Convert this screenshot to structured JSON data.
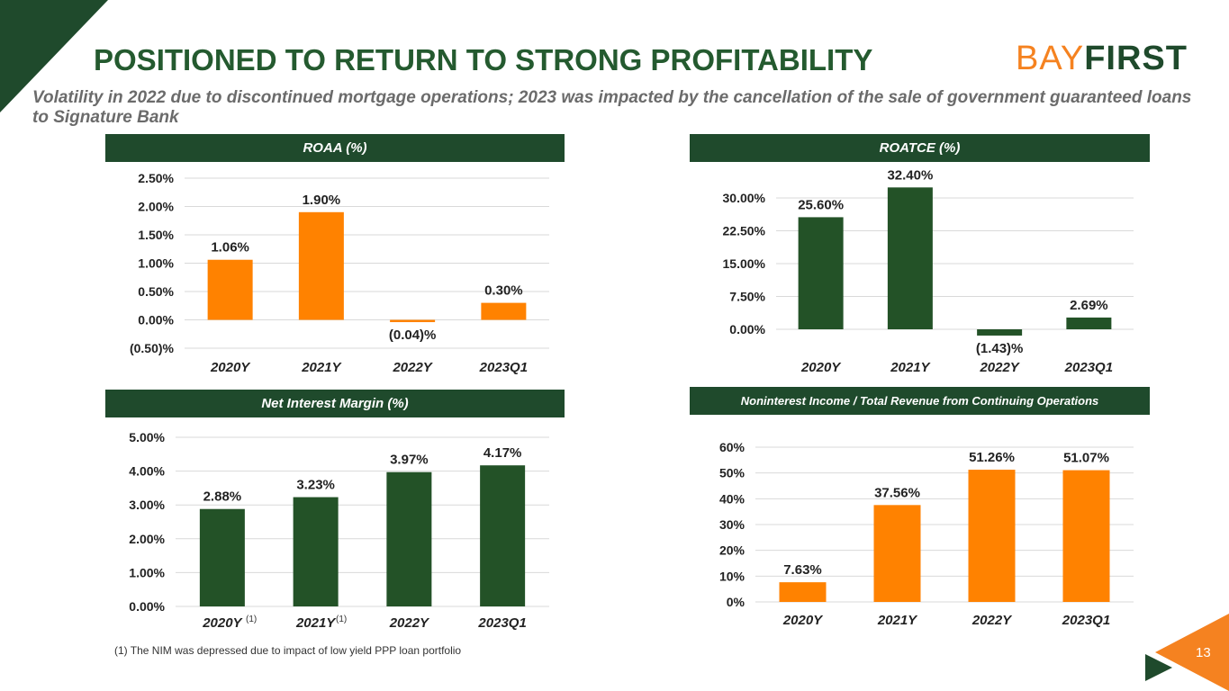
{
  "slide": {
    "title": "POSITIONED TO RETURN TO STRONG PROFITABILITY",
    "subtitle": "Volatility in 2022 due to discontinued mortgage operations; 2023 was impacted by the cancellation of the sale of government guaranteed loans to Signature Bank",
    "logo": {
      "part1": "BAY",
      "part2": "FIRST"
    },
    "footnote": "(1) The NIM was depressed due to impact of low yield PPP loan portfolio",
    "footnote_marker": "(1)",
    "page_number": "13",
    "colors": {
      "green": "#1f4a2c",
      "orange": "#f58220",
      "bar_green": "#245a2f"
    }
  },
  "chart_data": [
    {
      "id": "roaa",
      "type": "bar",
      "title": "ROAA (%)",
      "categories": [
        "2020Y",
        "2021Y",
        "2022Y",
        "2023Q1"
      ],
      "values": [
        1.06,
        1.9,
        -0.04,
        0.3
      ],
      "value_labels": [
        "1.06%",
        "1.90%",
        "(0.04)%",
        "0.30%"
      ],
      "yticks": [
        -0.5,
        0,
        0.5,
        1.0,
        1.5,
        2.0,
        2.5
      ],
      "ytick_labels": [
        "(0.50)%",
        "0.00%",
        "0.50%",
        "1.00%",
        "1.50%",
        "2.00%",
        "2.50%"
      ],
      "ylim": [
        -0.5,
        2.5
      ],
      "color": "#ff8200",
      "grid": true
    },
    {
      "id": "roatce",
      "type": "bar",
      "title": "ROATCE (%)",
      "categories": [
        "2020Y",
        "2021Y",
        "2022Y",
        "2023Q1"
      ],
      "values": [
        25.6,
        32.4,
        -1.43,
        2.69
      ],
      "value_labels": [
        "25.60%",
        "32.40%",
        "(1.43)%",
        "2.69%"
      ],
      "yticks": [
        0,
        7.5,
        15,
        22.5,
        30
      ],
      "ytick_labels": [
        "0.00%",
        "7.50%",
        "15.00%",
        "22.50%",
        "30.00%"
      ],
      "ylim": [
        0,
        30
      ],
      "color": "#235227",
      "grid": true
    },
    {
      "id": "nim",
      "type": "bar",
      "title": "Net Interest Margin (%)",
      "categories": [
        "2020Y",
        "2021Y",
        "2022Y",
        "2023Q1"
      ],
      "values": [
        2.88,
        3.23,
        3.97,
        4.17
      ],
      "value_labels": [
        "2.88%",
        "3.23%",
        "3.97%",
        "4.17%"
      ],
      "yticks": [
        0,
        1,
        2,
        3,
        4,
        5
      ],
      "ytick_labels": [
        "0.00%",
        "1.00%",
        "2.00%",
        "3.00%",
        "4.00%",
        "5.00%"
      ],
      "ylim": [
        0,
        5
      ],
      "color": "#235227",
      "grid": true
    },
    {
      "id": "nonint",
      "type": "bar",
      "title": "Noninterest Income / Total Revenue from Continuing Operations",
      "categories": [
        "2020Y",
        "2021Y",
        "2022Y",
        "2023Q1"
      ],
      "values": [
        7.63,
        37.56,
        51.26,
        51.07
      ],
      "value_labels": [
        "7.63%",
        "37.56%",
        "51.26%",
        "51.07%"
      ],
      "yticks": [
        0,
        10,
        20,
        30,
        40,
        50,
        60
      ],
      "ytick_labels": [
        "0%",
        "10%",
        "20%",
        "30%",
        "40%",
        "50%",
        "60%"
      ],
      "ylim": [
        0,
        60
      ],
      "color": "#ff8200",
      "grid": true
    }
  ]
}
